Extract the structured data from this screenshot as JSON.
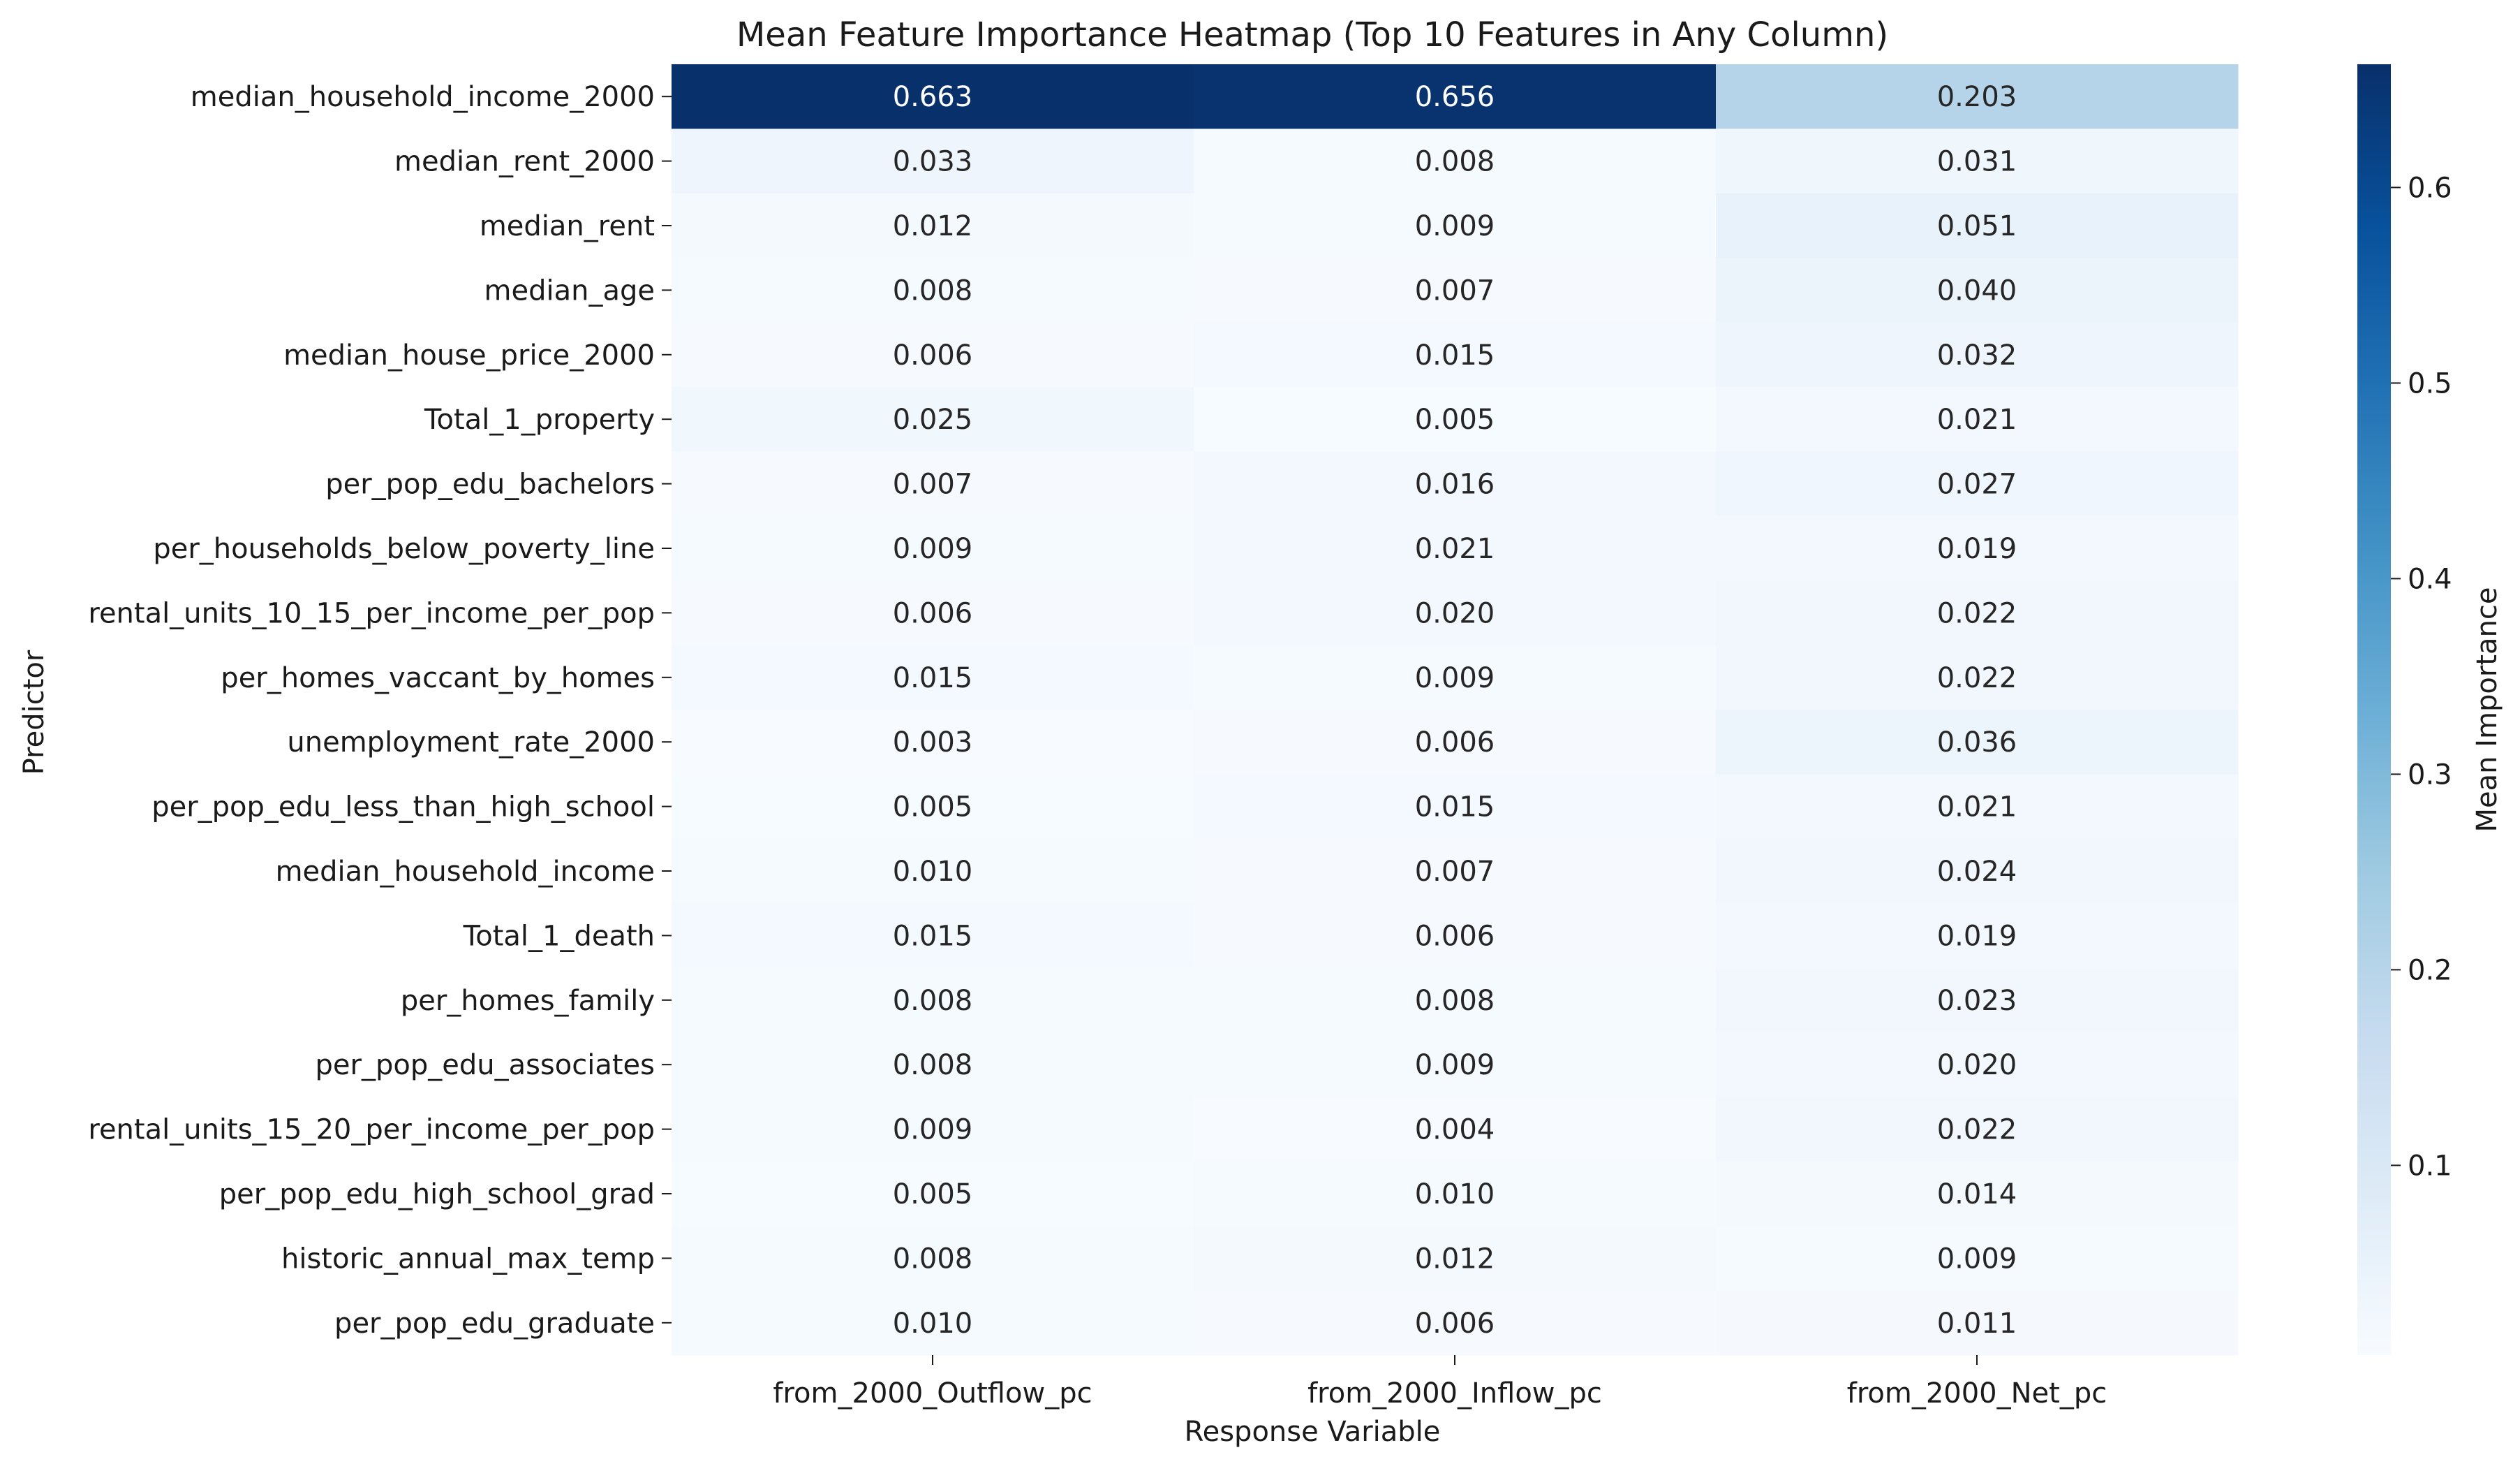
{
  "chart_data": {
    "type": "heatmap",
    "title": "Mean Feature Importance Heatmap (Top 10 Features in Any Column)",
    "xlabel": "Response Variable",
    "ylabel": "Predictor",
    "colorbar_label": "Mean Importance",
    "colormap": "Blues",
    "color_range": [
      0.003,
      0.663
    ],
    "colorbar_ticks": [
      "0.1",
      "0.2",
      "0.3",
      "0.4",
      "0.5",
      "0.6"
    ],
    "columns": [
      "from_2000_Outflow_pc",
      "from_2000_Inflow_pc",
      "from_2000_Net_pc"
    ],
    "rows": [
      {
        "name": "median_household_income_2000",
        "values": [
          0.663,
          0.656,
          0.203
        ],
        "labels": [
          "0.663",
          "0.656",
          "0.203"
        ]
      },
      {
        "name": "median_rent_2000",
        "values": [
          0.033,
          0.008,
          0.031
        ],
        "labels": [
          "0.033",
          "0.008",
          "0.031"
        ]
      },
      {
        "name": "median_rent",
        "values": [
          0.012,
          0.009,
          0.051
        ],
        "labels": [
          "0.012",
          "0.009",
          "0.051"
        ]
      },
      {
        "name": "median_age",
        "values": [
          0.008,
          0.007,
          0.04
        ],
        "labels": [
          "0.008",
          "0.007",
          "0.040"
        ]
      },
      {
        "name": "median_house_price_2000",
        "values": [
          0.006,
          0.015,
          0.032
        ],
        "labels": [
          "0.006",
          "0.015",
          "0.032"
        ]
      },
      {
        "name": "Total_1_property",
        "values": [
          0.025,
          0.005,
          0.021
        ],
        "labels": [
          "0.025",
          "0.005",
          "0.021"
        ]
      },
      {
        "name": "per_pop_edu_bachelors",
        "values": [
          0.007,
          0.016,
          0.027
        ],
        "labels": [
          "0.007",
          "0.016",
          "0.027"
        ]
      },
      {
        "name": "per_households_below_poverty_line",
        "values": [
          0.009,
          0.021,
          0.019
        ],
        "labels": [
          "0.009",
          "0.021",
          "0.019"
        ]
      },
      {
        "name": "rental_units_10_15_per_income_per_pop",
        "values": [
          0.006,
          0.02,
          0.022
        ],
        "labels": [
          "0.006",
          "0.020",
          "0.022"
        ]
      },
      {
        "name": "per_homes_vaccant_by_homes",
        "values": [
          0.015,
          0.009,
          0.022
        ],
        "labels": [
          "0.015",
          "0.009",
          "0.022"
        ]
      },
      {
        "name": "unemployment_rate_2000",
        "values": [
          0.003,
          0.006,
          0.036
        ],
        "labels": [
          "0.003",
          "0.006",
          "0.036"
        ]
      },
      {
        "name": "per_pop_edu_less_than_high_school",
        "values": [
          0.005,
          0.015,
          0.021
        ],
        "labels": [
          "0.005",
          "0.015",
          "0.021"
        ]
      },
      {
        "name": "median_household_income",
        "values": [
          0.01,
          0.007,
          0.024
        ],
        "labels": [
          "0.010",
          "0.007",
          "0.024"
        ]
      },
      {
        "name": "Total_1_death",
        "values": [
          0.015,
          0.006,
          0.019
        ],
        "labels": [
          "0.015",
          "0.006",
          "0.019"
        ]
      },
      {
        "name": "per_homes_family",
        "values": [
          0.008,
          0.008,
          0.023
        ],
        "labels": [
          "0.008",
          "0.008",
          "0.023"
        ]
      },
      {
        "name": "per_pop_edu_associates",
        "values": [
          0.008,
          0.009,
          0.02
        ],
        "labels": [
          "0.008",
          "0.009",
          "0.020"
        ]
      },
      {
        "name": "rental_units_15_20_per_income_per_pop",
        "values": [
          0.009,
          0.004,
          0.022
        ],
        "labels": [
          "0.009",
          "0.004",
          "0.022"
        ]
      },
      {
        "name": "per_pop_edu_high_school_grad",
        "values": [
          0.005,
          0.01,
          0.014
        ],
        "labels": [
          "0.005",
          "0.010",
          "0.014"
        ]
      },
      {
        "name": "historic_annual_max_temp",
        "values": [
          0.008,
          0.012,
          0.009
        ],
        "labels": [
          "0.008",
          "0.012",
          "0.009"
        ]
      },
      {
        "name": "per_pop_edu_graduate",
        "values": [
          0.01,
          0.006,
          0.011
        ],
        "labels": [
          "0.010",
          "0.006",
          "0.011"
        ]
      }
    ]
  }
}
